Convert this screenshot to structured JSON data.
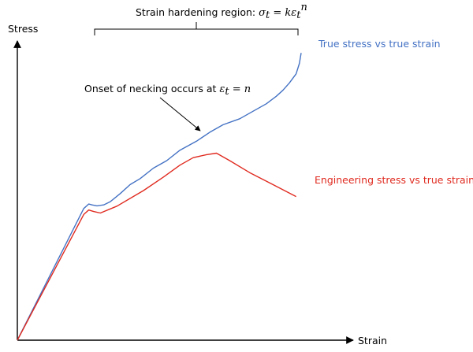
{
  "chart_data": {
    "type": "line",
    "title": "",
    "ylabel": "Stress",
    "xlabel": "Strain",
    "grid": false,
    "axis_ticks": "none",
    "xlim": [
      0,
      1
    ],
    "ylim": [
      0,
      1
    ],
    "series": [
      {
        "name": "True stress vs true strain",
        "color": "#4472c4",
        "x": [
          0.0,
          0.2,
          0.215,
          0.225,
          0.24,
          0.26,
          0.28,
          0.31,
          0.34,
          0.37,
          0.41,
          0.45,
          0.49,
          0.54,
          0.58,
          0.62,
          0.67,
          0.71,
          0.75,
          0.78,
          0.8,
          0.82,
          0.84,
          0.85,
          0.855
        ],
        "y": [
          0.0,
          0.44,
          0.455,
          0.452,
          0.449,
          0.452,
          0.463,
          0.49,
          0.52,
          0.54,
          0.575,
          0.6,
          0.635,
          0.665,
          0.695,
          0.72,
          0.74,
          0.765,
          0.79,
          0.815,
          0.835,
          0.86,
          0.89,
          0.925,
          0.96
        ]
      },
      {
        "name": "Engineering stress vs true strain",
        "color": "#e02b20",
        "x": [
          0.0,
          0.2,
          0.215,
          0.23,
          0.25,
          0.3,
          0.38,
          0.44,
          0.49,
          0.53,
          0.57,
          0.6,
          0.64,
          0.7,
          0.77,
          0.84
        ],
        "y": [
          0.0,
          0.42,
          0.435,
          0.43,
          0.425,
          0.448,
          0.5,
          0.545,
          0.585,
          0.61,
          0.62,
          0.625,
          0.6,
          0.56,
          0.52,
          0.48
        ]
      }
    ],
    "annotations": {
      "hardening_prefix": "Strain hardening region: ",
      "hardening_formula": {
        "sigma": "σ",
        "t": "t",
        "eq": " = ",
        "k": "kε",
        "t2": "t",
        "n": "n"
      },
      "necking_prefix": "Onset of necking occurs at ",
      "necking_formula": {
        "eps": "ε",
        "t": "t",
        "eq": " = ",
        "n": "n"
      }
    }
  }
}
